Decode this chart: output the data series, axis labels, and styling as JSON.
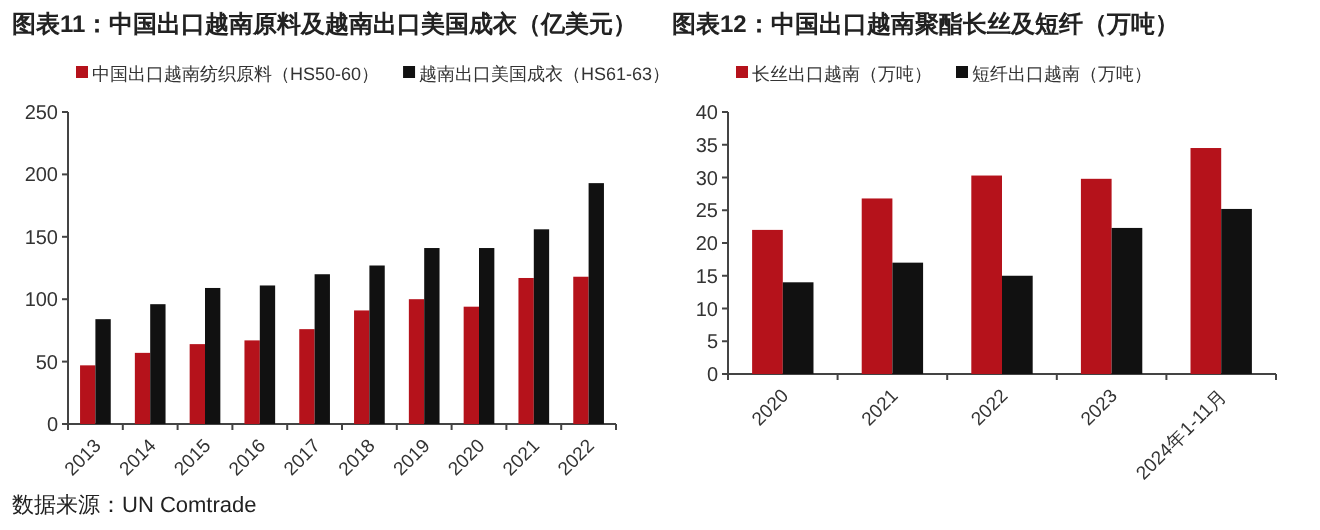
{
  "chart_data": [
    {
      "type": "bar",
      "title": "图表11：中国出口越南原料及越南出口美国成衣（亿美元）",
      "categories": [
        "2013",
        "2014",
        "2015",
        "2016",
        "2017",
        "2018",
        "2019",
        "2020",
        "2021",
        "2022"
      ],
      "series": [
        {
          "name": "中国出口越南纺织原料（HS50-60）",
          "color": "#b5121b",
          "values": [
            47,
            57,
            64,
            67,
            76,
            91,
            100,
            94,
            117,
            118
          ]
        },
        {
          "name": "越南出口美国成衣（HS61-63）",
          "color": "#111111",
          "values": [
            84,
            96,
            109,
            111,
            120,
            127,
            141,
            141,
            156,
            193
          ]
        }
      ],
      "ylim": [
        0,
        250
      ],
      "yticks": [
        0,
        50,
        100,
        150,
        200,
        250
      ],
      "legend": "top",
      "annotations": [
        "数据来源：UN Comtrade"
      ]
    },
    {
      "type": "bar",
      "title": "图表12：中国出口越南聚酯长丝及短纤（万吨）",
      "categories": [
        "2020",
        "2021",
        "2022",
        "2023",
        "2024年1-11月"
      ],
      "series": [
        {
          "name": "长丝出口越南（万吨）",
          "color": "#b5121b",
          "values": [
            22,
            26.8,
            30.3,
            29.8,
            34.5
          ]
        },
        {
          "name": "短纤出口越南（万吨）",
          "color": "#111111",
          "values": [
            14,
            17,
            15,
            22.3,
            25.2
          ]
        }
      ],
      "ylim": [
        0,
        40
      ],
      "yticks": [
        0,
        5,
        10,
        15,
        20,
        25,
        30,
        35,
        40
      ],
      "legend": "top"
    }
  ]
}
